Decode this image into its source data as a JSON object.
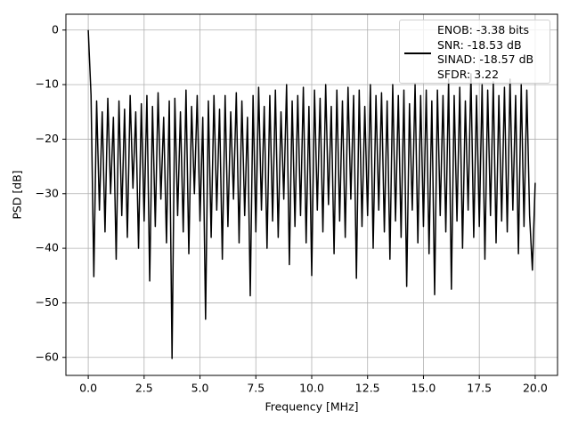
{
  "chart_data": {
    "type": "line",
    "xlabel": "Frequency [MHz]",
    "ylabel": "PSD [dB]",
    "xlim": [
      -1,
      21
    ],
    "ylim": [
      -63.3,
      2.9
    ],
    "xticks": [
      {
        "value": 0,
        "label": "0.0"
      },
      2.5,
      {
        "value": 5,
        "label": "5.0"
      },
      7.5,
      {
        "value": 10,
        "label": "10.0"
      },
      12.5,
      {
        "value": 15,
        "label": "15.0"
      },
      17.5,
      {
        "value": 20,
        "label": "20.0"
      }
    ],
    "yticks": [
      {
        "value": -60,
        "label": "−60"
      },
      {
        "value": -50,
        "label": "−50"
      },
      {
        "value": -40,
        "label": "−40"
      },
      {
        "value": -30,
        "label": "−30"
      },
      {
        "value": -20,
        "label": "−20"
      },
      {
        "value": -10,
        "label": "−10"
      },
      0
    ],
    "grid": true,
    "legend": "upper right",
    "x": [
      0,
      0.125,
      0.25,
      0.375,
      0.5,
      0.625,
      0.75,
      0.875,
      1,
      1.125,
      1.25,
      1.375,
      1.5,
      1.625,
      1.75,
      1.875,
      2,
      2.125,
      2.25,
      2.375,
      2.5,
      2.625,
      2.75,
      2.875,
      3,
      3.125,
      3.25,
      3.375,
      3.5,
      3.625,
      3.75,
      3.875,
      4,
      4.125,
      4.25,
      4.375,
      4.5,
      4.625,
      4.75,
      4.875,
      5,
      5.125,
      5.25,
      5.375,
      5.5,
      5.625,
      5.75,
      5.875,
      6,
      6.125,
      6.25,
      6.375,
      6.5,
      6.625,
      6.75,
      6.875,
      7,
      7.125,
      7.25,
      7.375,
      7.5,
      7.625,
      7.75,
      7.875,
      8,
      8.125,
      8.25,
      8.375,
      8.5,
      8.625,
      8.75,
      8.875,
      9,
      9.125,
      9.25,
      9.375,
      9.5,
      9.625,
      9.75,
      9.875,
      10,
      10.125,
      10.25,
      10.375,
      10.5,
      10.625,
      10.75,
      10.875,
      11,
      11.125,
      11.25,
      11.375,
      11.5,
      11.625,
      11.75,
      11.875,
      12,
      12.125,
      12.25,
      12.375,
      12.5,
      12.625,
      12.75,
      12.875,
      13,
      13.125,
      13.25,
      13.375,
      13.5,
      13.625,
      13.75,
      13.875,
      14,
      14.125,
      14.25,
      14.375,
      14.5,
      14.625,
      14.75,
      14.875,
      15,
      15.125,
      15.25,
      15.375,
      15.5,
      15.625,
      15.75,
      15.875,
      16,
      16.125,
      16.25,
      16.375,
      16.5,
      16.625,
      16.75,
      16.875,
      17,
      17.125,
      17.25,
      17.375,
      17.5,
      17.625,
      17.75,
      17.875,
      18,
      18.125,
      18.25,
      18.375,
      18.5,
      18.625,
      18.75,
      18.875,
      19,
      19.125,
      19.25,
      19.375,
      19.5,
      19.625,
      19.75,
      19.875,
      20
    ],
    "series": [
      {
        "name": "ENOB: -3.38 bits\nSNR: -18.53 dB\nSINAD: -18.57 dB\nSFDR: 3.22",
        "color": "#000000",
        "values": [
          0,
          -12,
          -45.2,
          -13,
          -33,
          -15,
          -37,
          -12.5,
          -30,
          -16,
          -42,
          -13,
          -34,
          -14.5,
          -38,
          -12,
          -29,
          -15,
          -40,
          -13.5,
          -35,
          -12,
          -46,
          -14,
          -36,
          -11.5,
          -31,
          -16,
          -39,
          -13,
          -60.2,
          -12.5,
          -34,
          -15,
          -37,
          -11,
          -41,
          -14,
          -30,
          -12,
          -35,
          -16,
          -53,
          -13,
          -38,
          -12,
          -33,
          -14.5,
          -42,
          -12,
          -36,
          -15,
          -31,
          -11.5,
          -39,
          -13,
          -34,
          -16,
          -48.7,
          -12,
          -37,
          -10.5,
          -33,
          -14,
          -40,
          -12,
          -35,
          -11,
          -38,
          -15,
          -31,
          -10,
          -43,
          -13,
          -36,
          -12,
          -34,
          -10.5,
          -39,
          -14,
          -45,
          -11,
          -33,
          -12.5,
          -37,
          -10,
          -32,
          -14,
          -41,
          -11,
          -35,
          -13,
          -38,
          -10.5,
          -31,
          -12,
          -45.5,
          -11,
          -36,
          -14,
          -34,
          -10,
          -40,
          -12,
          -33,
          -11.5,
          -37,
          -13,
          -42,
          -10,
          -35,
          -12,
          -38,
          -11,
          -47,
          -13.5,
          -33,
          -10,
          -39,
          -12,
          -36,
          -11,
          -41,
          -13,
          -48.5,
          -11,
          -34,
          -12,
          -37,
          -9,
          -47.5,
          -12,
          -35,
          -10.5,
          -40,
          -13,
          -33,
          -8,
          -38,
          -12,
          -36,
          -10,
          -42,
          -11,
          -34,
          -9.5,
          -39,
          -12,
          -35,
          -10.5,
          -37,
          -9,
          -33,
          -12,
          -41,
          -10,
          -36,
          -11,
          -34,
          -44,
          -28
        ]
      }
    ]
  }
}
